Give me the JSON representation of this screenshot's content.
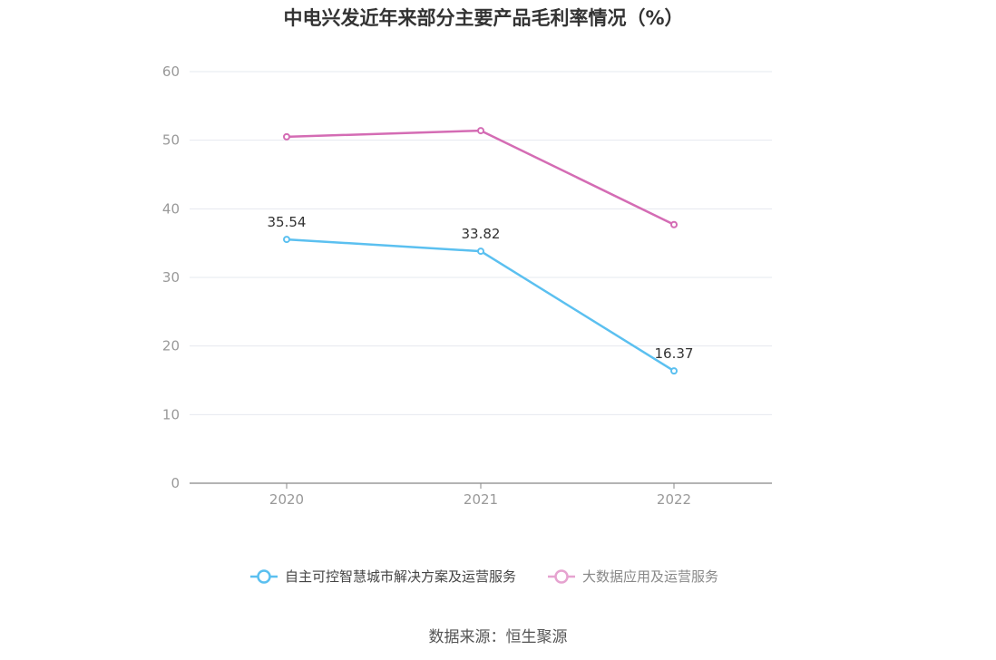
{
  "chart_data": {
    "type": "line",
    "title": "中电兴发近年来部分主要产品毛利率情况（%）",
    "categories": [
      "2020",
      "2021",
      "2022"
    ],
    "series": [
      {
        "name": "自主可控智慧城市解决方案及运营服务",
        "values": [
          35.54,
          33.82,
          16.37
        ],
        "color": "#5bc0f0",
        "labels": [
          "35.54",
          "33.82",
          "16.37"
        ]
      },
      {
        "name": "大数据应用及运营服务",
        "values": [
          50.5,
          51.4,
          37.7
        ],
        "color": "#d46cb4",
        "legend_color": "#e6a3d0"
      }
    ],
    "ylim": [
      0,
      60
    ],
    "yticks": [
      "0",
      "10",
      "20",
      "30",
      "40",
      "50",
      "60"
    ],
    "grid": true,
    "legend_position": "bottom"
  },
  "source": "数据来源：恒生聚源"
}
